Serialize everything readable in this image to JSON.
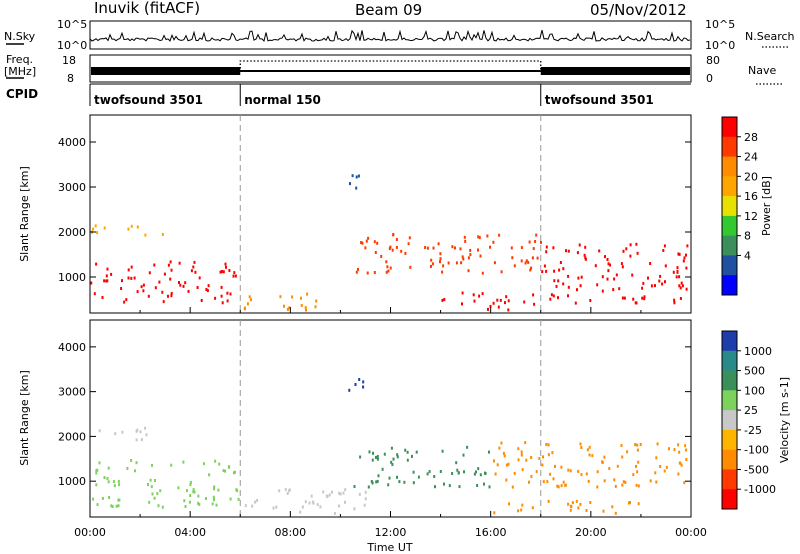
{
  "header": {
    "station": "Inuvik (fitACF)",
    "beam": "Beam 09",
    "date": "05/Nov/2012"
  },
  "nsky_panel": {
    "left_label": "N.Sky",
    "right_label": "N.Search",
    "left_ticks": [
      "10^5",
      "10^0"
    ],
    "right_ticks": [
      "10^5",
      "10^0"
    ]
  },
  "freq_panel": {
    "left_label_line1": "Freq.",
    "left_label_line2": "[MHz]",
    "left_ticks": [
      "18",
      "8"
    ],
    "right_label": "Nave",
    "right_ticks": [
      "80",
      "0"
    ]
  },
  "cpid_panel": {
    "label": "CPID",
    "segments": [
      {
        "start_hour": 0,
        "end_hour": 6,
        "text": "twofsound 3501"
      },
      {
        "start_hour": 6,
        "end_hour": 18,
        "text": "normal 150"
      },
      {
        "start_hour": 18,
        "end_hour": 24,
        "text": "twofsound 3501"
      }
    ]
  },
  "x_axis": {
    "label": "Time UT",
    "ticks": [
      "00:00",
      "04:00",
      "08:00",
      "12:00",
      "16:00",
      "20:00",
      "00:00"
    ]
  },
  "power_colorbar": {
    "label": "Power [dB]",
    "ticks": [
      "28",
      "24",
      "20",
      "16",
      "12",
      "8",
      "4"
    ],
    "colors": [
      "#ff0000",
      "#ff3a00",
      "#ff8c00",
      "#ffa500",
      "#e8e000",
      "#32c832",
      "#3a8f5a",
      "#2050a0",
      "#0000ff"
    ]
  },
  "velocity_colorbar": {
    "label": "Velocity [m s-1]",
    "ticks": [
      "1000",
      "500",
      "100",
      "25",
      "-25",
      "-100",
      "-500",
      "-1000"
    ],
    "colors": [
      "#1e3caa",
      "#2a8a8a",
      "#3a8f5a",
      "#7cd25c",
      "#c8c8c8",
      "#ffb400",
      "#ff8c00",
      "#ff3a00",
      "#ff0000"
    ]
  },
  "chart_data": [
    {
      "type": "heatmap",
      "title": "Power",
      "xlabel": "Time UT",
      "ylabel": "Slant Range [km]",
      "xlim_hours": [
        0,
        24
      ],
      "ylim_km": [
        200,
        4600
      ],
      "yticks": [
        1000,
        2000,
        3000,
        4000
      ],
      "vlines_hours": [
        6,
        18
      ],
      "scatter_regions": [
        {
          "t0": 0,
          "t1": 5.9,
          "r0": 450,
          "r1": 1400,
          "dominant_value": "28",
          "color": "#ff0000"
        },
        {
          "t0": 0,
          "t1": 3.2,
          "r0": 1950,
          "r1": 2200,
          "dominant_value": "16",
          "color": "#ffa500"
        },
        {
          "t0": 6.1,
          "t1": 9.5,
          "r0": 300,
          "r1": 700,
          "dominant_value": "20",
          "color": "#ff8c00"
        },
        {
          "t0": 10.5,
          "t1": 18,
          "r0": 1100,
          "r1": 2000,
          "dominant_value": "28",
          "color": "#ff3a00"
        },
        {
          "t0": 14,
          "t1": 18,
          "r0": 280,
          "r1": 700,
          "dominant_value": "28",
          "color": "#ff0000"
        },
        {
          "t0": 18,
          "t1": 24,
          "r0": 450,
          "r1": 1800,
          "dominant_value": "28",
          "color": "#ff0000"
        },
        {
          "t0": 10.2,
          "t1": 11,
          "r0": 2900,
          "r1": 3400,
          "dominant_value": "8",
          "color": "#2050a0"
        }
      ]
    },
    {
      "type": "heatmap",
      "title": "Velocity",
      "xlabel": "Time UT",
      "ylabel": "Slant Range [km]",
      "xlim_hours": [
        0,
        24
      ],
      "ylim_km": [
        200,
        4600
      ],
      "yticks": [
        1000,
        2000,
        3000,
        4000
      ],
      "vlines_hours": [
        6,
        18
      ],
      "scatter_regions": [
        {
          "t0": 0,
          "t1": 5.9,
          "r0": 450,
          "r1": 1500,
          "dominant_value": "100",
          "color": "#7cd25c"
        },
        {
          "t0": 0,
          "t1": 2.6,
          "r0": 1950,
          "r1": 2250,
          "dominant_value": "25",
          "color": "#c8c8c8"
        },
        {
          "t0": 6.1,
          "t1": 11,
          "r0": 300,
          "r1": 900,
          "dominant_value": "25",
          "color": "#c8c8c8"
        },
        {
          "t0": 10.5,
          "t1": 16,
          "r0": 900,
          "r1": 1800,
          "dominant_value": "100",
          "color": "#3a8f5a"
        },
        {
          "t0": 16,
          "t1": 24,
          "r0": 900,
          "r1": 1900,
          "dominant_value": "-100",
          "color": "#ff8c00"
        },
        {
          "t0": 16,
          "t1": 22,
          "r0": 300,
          "r1": 600,
          "dominant_value": "-100",
          "color": "#ff8c00"
        },
        {
          "t0": 10.2,
          "t1": 11,
          "r0": 2900,
          "r1": 3400,
          "dominant_value": "500",
          "color": "#1e3caa"
        }
      ]
    }
  ]
}
